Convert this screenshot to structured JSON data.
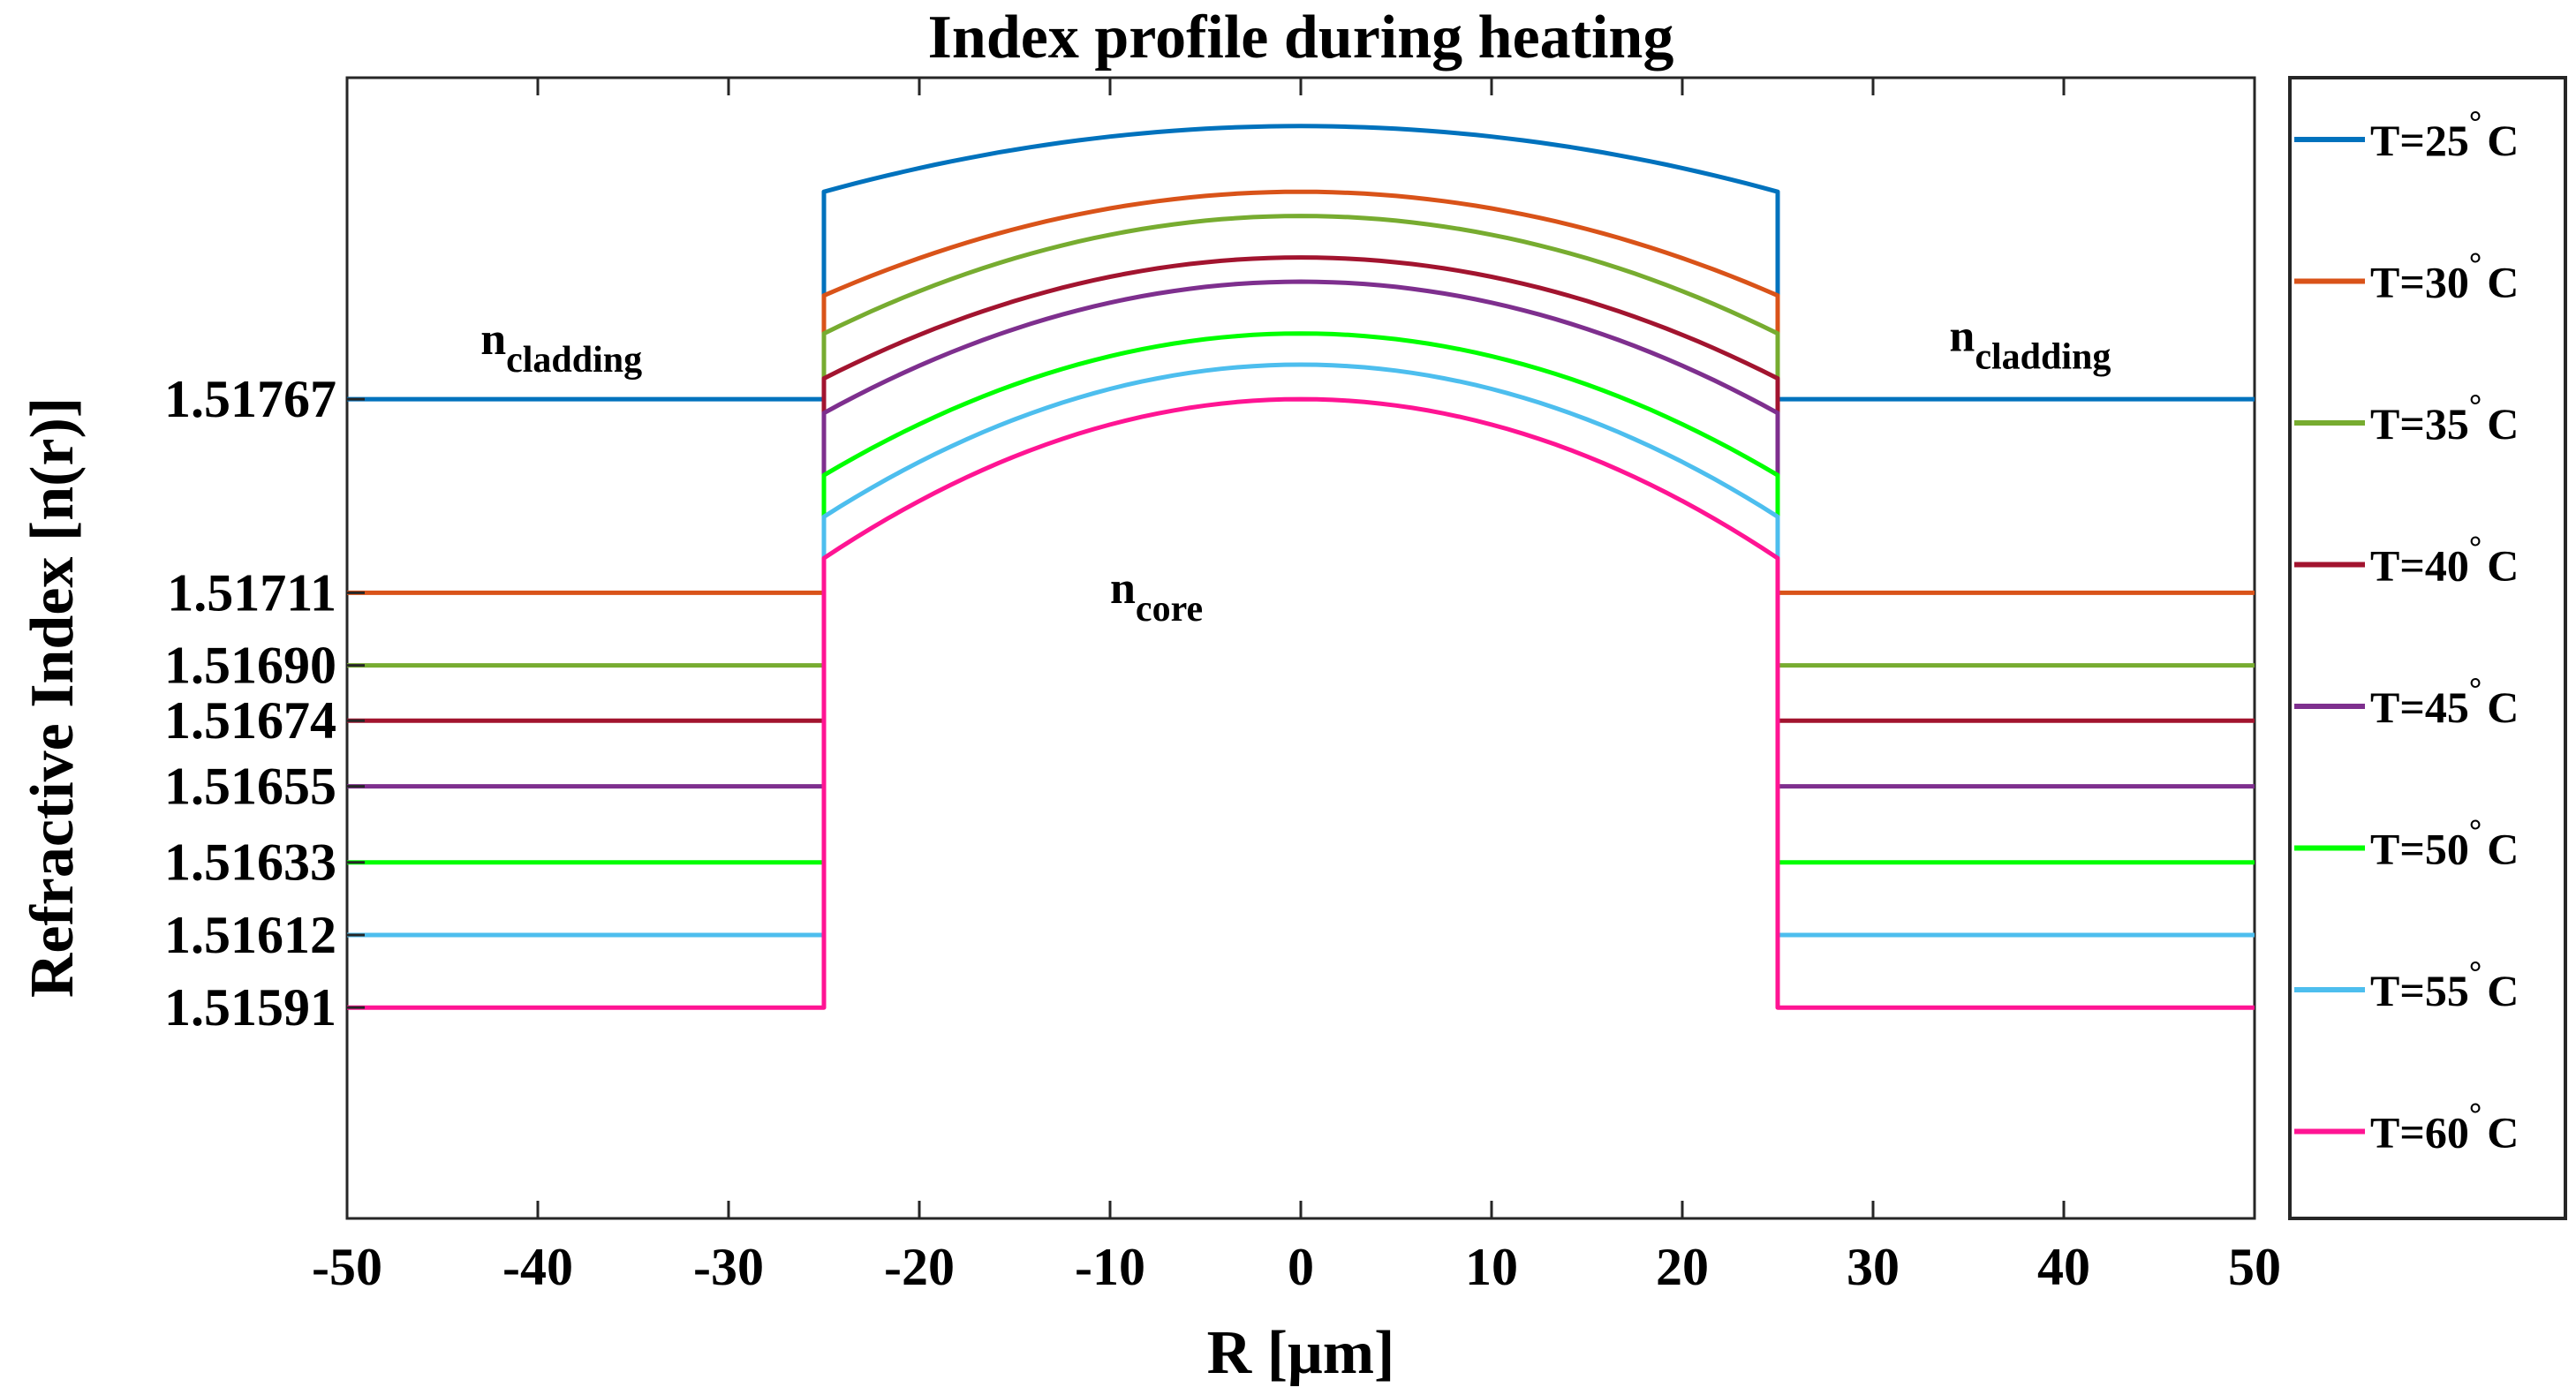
{
  "chart_data": {
    "type": "line",
    "title": "Index profile during heating",
    "xlabel": "R [μm]",
    "ylabel": "Refractive Index [n(r)]",
    "xlim": [
      -50,
      50
    ],
    "ylim": [
      1.5153,
      1.5186
    ],
    "x_ticks": [
      -50,
      -40,
      -30,
      -20,
      -10,
      0,
      10,
      20,
      30,
      40,
      50
    ],
    "y_ticks": [
      1.51591,
      1.51612,
      1.51633,
      1.51655,
      1.51674,
      1.5169,
      1.51711,
      1.51767
    ],
    "y_tick_labels": [
      "1.51591",
      "1.51612",
      "1.51633",
      "1.51655",
      "1.51674",
      "1.51690",
      "1.51711",
      "1.51767"
    ],
    "core_radius": 25,
    "grid": false,
    "legend_position": "outside-right",
    "annotations": [
      {
        "base": "n",
        "sub": "cladding",
        "x": -43,
        "y": 1.5178
      },
      {
        "base": "n",
        "sub": "cladding",
        "x": 34,
        "y": 1.51781
      },
      {
        "base": "n",
        "sub": "core",
        "x": -10,
        "y": 1.51708
      }
    ],
    "series": [
      {
        "name": "T=25° C",
        "label_base": "T=25",
        "label_unit": "C",
        "color": "#0072BD",
        "cladding": 1.51767,
        "core_edge": 1.51827,
        "core_center": 1.51846
      },
      {
        "name": "T=30° C",
        "label_base": "T=30",
        "label_unit": "C",
        "color": "#D95319",
        "cladding": 1.51711,
        "core_edge": 1.51797,
        "core_center": 1.51827
      },
      {
        "name": "T=35° C",
        "label_base": "T=35",
        "label_unit": "C",
        "color": "#77AC30",
        "cladding": 1.5169,
        "core_edge": 1.51786,
        "core_center": 1.5182
      },
      {
        "name": "T=40° C",
        "label_base": "T=40",
        "label_unit": "C",
        "color": "#A2142F",
        "cladding": 1.51674,
        "core_edge": 1.51773,
        "core_center": 1.51808
      },
      {
        "name": "T=45° C",
        "label_base": "T=45",
        "label_unit": "C",
        "color": "#7E2F8E",
        "cladding": 1.51655,
        "core_edge": 1.51763,
        "core_center": 1.51801
      },
      {
        "name": "T=50° C",
        "label_base": "T=50",
        "label_unit": "C",
        "color": "#00FF00",
        "cladding": 1.51633,
        "core_edge": 1.51745,
        "core_center": 1.51786
      },
      {
        "name": "T=55° C",
        "label_base": "T=55",
        "label_unit": "C",
        "color": "#4DBEEE",
        "cladding": 1.51612,
        "core_edge": 1.51733,
        "core_center": 1.51777
      },
      {
        "name": "T=60° C",
        "label_base": "T=60",
        "label_unit": "C",
        "color": "#FF1493",
        "cladding": 1.51591,
        "core_edge": 1.51721,
        "core_center": 1.51767
      }
    ]
  }
}
